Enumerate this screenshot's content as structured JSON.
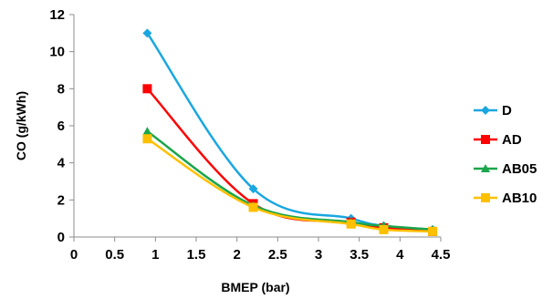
{
  "chart_data": {
    "type": "line",
    "xlabel": "BMEP (bar)",
    "ylabel": "CO (g/kWh)",
    "xlim": [
      0,
      4.5
    ],
    "ylim": [
      0,
      12
    ],
    "xticks": [
      0,
      0.5,
      1,
      1.5,
      2,
      2.5,
      3,
      3.5,
      4,
      4.5
    ],
    "xtick_labels": [
      "0",
      "0.5",
      "1",
      "1.5",
      "2",
      "2.5",
      "3",
      "3.5",
      "4",
      "4.5"
    ],
    "yticks": [
      0,
      2,
      4,
      6,
      8,
      10,
      12
    ],
    "ytick_labels": [
      "0",
      "2",
      "4",
      "6",
      "8",
      "10",
      "12"
    ],
    "grid": false,
    "legend_position": "right",
    "smoothed": true,
    "x": [
      0.9,
      2.2,
      3.4,
      3.8,
      4.4
    ],
    "series": [
      {
        "name": "D",
        "color": "#1aa7e0",
        "marker": "diamond",
        "values": [
          11.0,
          2.6,
          1.0,
          0.6,
          0.4
        ]
      },
      {
        "name": "AD",
        "color": "#ff0000",
        "marker": "square",
        "values": [
          8.0,
          1.8,
          0.8,
          0.5,
          0.3
        ]
      },
      {
        "name": "AB05",
        "color": "#1aa64b",
        "marker": "triangle",
        "values": [
          5.7,
          1.7,
          0.8,
          0.6,
          0.4
        ]
      },
      {
        "name": "AB10",
        "color": "#ffc000",
        "marker": "square",
        "values": [
          5.3,
          1.6,
          0.7,
          0.4,
          0.3
        ]
      }
    ]
  }
}
